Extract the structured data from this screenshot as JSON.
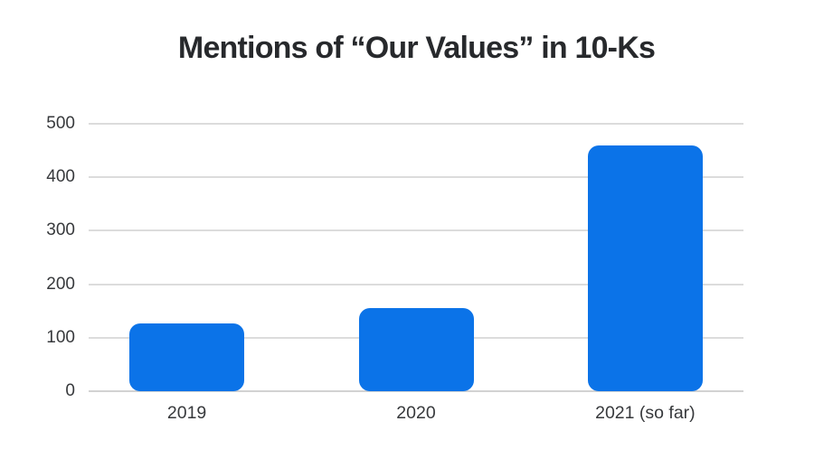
{
  "chart_data": {
    "type": "bar",
    "title": "Mentions of “Our Values” in 10-Ks",
    "categories": [
      "2019",
      "2020",
      "2021 (so far)"
    ],
    "values": [
      127,
      156,
      459
    ],
    "xlabel": "",
    "ylabel": "",
    "ylim": [
      0,
      500
    ],
    "yticks": [
      0,
      100,
      200,
      300,
      400,
      500
    ],
    "grid": true,
    "legend": false,
    "bar_color": "#0b73e8",
    "bar_corner_radius_px": 12
  },
  "colors": {
    "background": "#ffffff",
    "bar": "#0b73e8",
    "gridline": "#dcdcdc",
    "baseline": "#d2d2d2",
    "title_text": "#27292c",
    "tick_text": "#37393c"
  }
}
